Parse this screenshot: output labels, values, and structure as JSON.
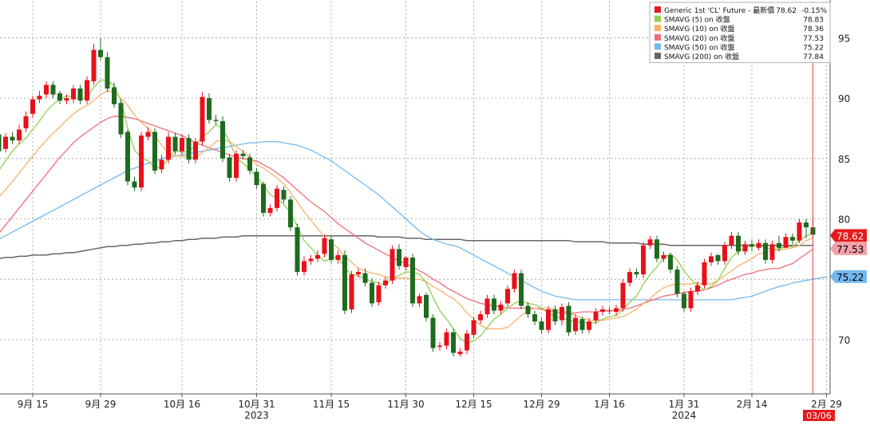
{
  "chart_data": {
    "type": "candlestick",
    "ylim": [
      65.5,
      98
    ],
    "y_ticks": [
      70,
      75,
      80,
      85,
      90,
      95
    ],
    "x_ticks": [
      {
        "label": "9月 15",
        "idx": 5
      },
      {
        "label": "9月 29",
        "idx": 15
      },
      {
        "label": "10月 16",
        "idx": 27
      },
      {
        "label": "10月 31",
        "idx": 38
      },
      {
        "label": "11月 15",
        "idx": 49
      },
      {
        "label": "11月 30",
        "idx": 60
      },
      {
        "label": "12月 15",
        "idx": 70
      },
      {
        "label": "12月 29",
        "idx": 80
      },
      {
        "label": "1月 16",
        "idx": 90
      },
      {
        "label": "1月 31",
        "idx": 101
      },
      {
        "label": "2月 14",
        "idx": 111
      },
      {
        "label": "2月 29",
        "idx": 122
      }
    ],
    "year_labels": [
      {
        "label": "2023",
        "idx": 38
      },
      {
        "label": "2024",
        "idx": 101
      }
    ],
    "last_date_label": "03/06",
    "legend": [
      {
        "name": "Generic 1st 'CL' Future - 最新價",
        "value": "78.62",
        "extra": "-0.15%",
        "color": "#e41a1c"
      },
      {
        "name": "SMAVG (5)  on 收盤",
        "value": "78.83",
        "color": "#8fd14f"
      },
      {
        "name": "SMAVG (10)  on 收盤",
        "value": "78.36",
        "color": "#f7b267"
      },
      {
        "name": "SMAVG (20)  on 收盤",
        "value": "77.53",
        "color": "#f06c7a"
      },
      {
        "name": "SMAVG (50)  on 收盤",
        "value": "75.22",
        "color": "#74b9ef"
      },
      {
        "name": "SMAVG (200)  on 收盤",
        "value": "77.84",
        "color": "#666666"
      }
    ],
    "price_tags": [
      {
        "value": 78.62,
        "text": "78.62",
        "bg": "#e41a1c",
        "fg": "#ffffff"
      },
      {
        "value": 77.53,
        "text": "77.53",
        "bg": "#f2a0a8",
        "fg": "#000000"
      },
      {
        "value": 75.22,
        "text": "75.22",
        "bg": "#74b9ef",
        "fg": "#000000"
      }
    ],
    "close": [
      85.6,
      86.8,
      86.5,
      87.4,
      88.5,
      89.9,
      90.2,
      91.1,
      90.3,
      89.8,
      90.0,
      90.8,
      89.8,
      91.5,
      94.0,
      93.4,
      90.8,
      89.5,
      87.0,
      83.1,
      82.6,
      86.9,
      87.2,
      84.0,
      84.9,
      86.8,
      85.6,
      86.7,
      84.9,
      86.4,
      90.1,
      88.2,
      88.1,
      85.0,
      83.4,
      85.4,
      85.2,
      84.0,
      82.8,
      80.5,
      80.9,
      82.5,
      81.6,
      79.3,
      75.6,
      76.5,
      76.7,
      77.0,
      78.4,
      76.6,
      77.0,
      72.4,
      75.4,
      75.6,
      74.7,
      73.0,
      74.5,
      74.9,
      77.5,
      76.1,
      76.8,
      73.0,
      73.6,
      71.8,
      69.3,
      69.5,
      70.6,
      68.9,
      69.0,
      70.5,
      71.6,
      72.1,
      73.4,
      72.4,
      72.9,
      74.2,
      75.5,
      72.8,
      72.1,
      71.5,
      70.8,
      72.5,
      71.5,
      72.7,
      70.6,
      71.8,
      70.8,
      71.5,
      72.3,
      72.5,
      72.4,
      72.6,
      74.7,
      75.6,
      75.4,
      77.8,
      78.3,
      76.7,
      77.0,
      75.8,
      73.8,
      72.6,
      74.0,
      74.5,
      76.4,
      76.9,
      76.5,
      77.8,
      78.6,
      77.3,
      77.9,
      77.7,
      78.0,
      76.6,
      77.9,
      77.6,
      78.5,
      78.2,
      79.7,
      79.3,
      78.7
    ],
    "open": [
      87.0,
      85.8,
      86.8,
      86.5,
      87.5,
      88.7,
      89.9,
      90.3,
      91.1,
      90.4,
      89.8,
      89.9,
      90.8,
      89.8,
      91.4,
      94.0,
      93.4,
      90.9,
      89.6,
      87.2,
      83.1,
      82.6,
      86.8,
      87.2,
      84.1,
      84.9,
      86.8,
      85.6,
      86.7,
      84.9,
      86.4,
      90.0,
      88.2,
      88.1,
      85.1,
      83.4,
      85.4,
      85.1,
      83.9,
      82.9,
      80.5,
      80.9,
      82.4,
      81.6,
      79.3,
      75.6,
      76.5,
      76.7,
      77.1,
      78.3,
      76.6,
      77.0,
      72.5,
      75.4,
      75.5,
      74.7,
      73.1,
      74.5,
      74.9,
      77.5,
      76.0,
      76.8,
      73.0,
      73.7,
      71.8,
      69.4,
      69.5,
      70.6,
      68.8,
      69.1,
      70.4,
      71.6,
      72.1,
      73.4,
      72.4,
      73.0,
      74.2,
      75.5,
      72.8,
      72.1,
      71.5,
      70.8,
      72.5,
      71.6,
      72.8,
      70.7,
      71.7,
      70.8,
      71.6,
      72.3,
      72.4,
      72.3,
      72.6,
      74.7,
      75.6,
      75.4,
      77.8,
      78.3,
      76.7,
      77.0,
      75.8,
      73.8,
      72.6,
      74.0,
      74.5,
      76.4,
      77.0,
      76.5,
      77.8,
      78.6,
      77.3,
      77.9,
      77.6,
      78.0,
      76.6,
      78.0,
      77.6,
      78.5,
      78.2,
      79.7,
      79.3
    ],
    "high": [
      87.5,
      87.1,
      87.2,
      87.8,
      88.9,
      90.2,
      90.6,
      91.4,
      91.4,
      90.6,
      90.3,
      91.1,
      91.1,
      91.8,
      94.5,
      95.0,
      93.8,
      91.3,
      89.9,
      87.4,
      83.5,
      87.2,
      87.6,
      87.5,
      85.3,
      87.2,
      87.1,
      87.0,
      87.0,
      86.7,
      90.5,
      90.4,
      88.6,
      88.5,
      85.4,
      85.7,
      85.7,
      85.4,
      84.2,
      83.1,
      81.2,
      82.8,
      82.7,
      81.9,
      79.6,
      76.9,
      77.0,
      77.4,
      78.7,
      78.6,
      77.4,
      77.4,
      75.7,
      75.9,
      75.9,
      75.1,
      74.8,
      75.2,
      77.8,
      77.9,
      76.9,
      77.1,
      73.8,
      73.9,
      72.1,
      69.8,
      70.9,
      70.9,
      69.3,
      70.8,
      71.9,
      72.4,
      73.7,
      73.7,
      73.2,
      74.5,
      75.8,
      75.8,
      73.1,
      72.4,
      71.8,
      72.8,
      72.8,
      73.0,
      73.1,
      72.1,
      71.9,
      71.8,
      72.6,
      72.8,
      72.7,
      72.9,
      75.0,
      75.9,
      75.9,
      78.1,
      78.6,
      78.6,
      77.3,
      77.2,
      76.1,
      74.0,
      74.3,
      74.8,
      76.7,
      77.2,
      77.1,
      78.1,
      78.9,
      78.9,
      78.2,
      78.3,
      78.3,
      78.3,
      78.2,
      78.6,
      78.8,
      78.8,
      80.0,
      80.0,
      80.2
    ],
    "low": [
      85.3,
      85.5,
      86.2,
      86.2,
      87.2,
      88.4,
      89.6,
      90.0,
      90.0,
      89.5,
      89.5,
      89.6,
      89.5,
      89.5,
      91.1,
      93.1,
      90.5,
      89.2,
      86.7,
      82.8,
      82.3,
      82.3,
      86.5,
      83.7,
      83.8,
      84.6,
      85.3,
      85.3,
      84.6,
      84.6,
      86.1,
      87.9,
      87.8,
      84.7,
      83.1,
      83.1,
      84.9,
      83.7,
      82.5,
      80.2,
      80.2,
      80.6,
      81.3,
      79.0,
      75.3,
      75.3,
      76.2,
      76.4,
      76.8,
      76.3,
      76.3,
      72.1,
      72.2,
      75.1,
      74.4,
      72.7,
      72.8,
      74.2,
      74.6,
      75.8,
      75.7,
      72.7,
      72.7,
      71.5,
      69.0,
      69.1,
      69.2,
      68.6,
      68.6,
      68.8,
      70.1,
      71.3,
      71.8,
      72.1,
      72.1,
      72.7,
      73.9,
      72.5,
      71.8,
      71.2,
      70.5,
      70.5,
      71.2,
      71.2,
      70.3,
      70.4,
      70.5,
      70.5,
      71.3,
      72.0,
      72.1,
      72.0,
      72.3,
      74.4,
      75.1,
      75.1,
      77.5,
      76.4,
      76.4,
      75.5,
      73.5,
      72.3,
      72.3,
      73.7,
      74.2,
      76.1,
      76.2,
      76.2,
      77.5,
      77.0,
      77.0,
      77.3,
      77.4,
      76.3,
      76.3,
      77.3,
      77.6,
      77.9,
      78.0,
      78.4,
      78.4
    ],
    "sma5": [
      84.0,
      84.8,
      85.6,
      86.2,
      86.7,
      87.4,
      88.1,
      88.9,
      89.5,
      89.9,
      90.2,
      90.1,
      89.9,
      90.1,
      90.9,
      91.5,
      91.5,
      91.0,
      89.8,
      87.5,
      85.7,
      85.1,
      84.8,
      84.2,
      84.3,
      85.0,
      85.7,
      85.5,
      85.6,
      86.1,
      86.8,
      87.2,
      87.8,
      87.5,
      86.4,
      85.1,
      84.6,
      84.1,
      83.5,
      82.8,
      82.0,
      81.7,
      81.2,
      80.5,
      79.4,
      78.2,
      77.6,
      77.0,
      76.5,
      76.7,
      76.9,
      75.9,
      75.4,
      75.3,
      75.0,
      74.8,
      74.7,
      74.5,
      75.1,
      75.3,
      75.6,
      75.6,
      75.4,
      74.7,
      73.5,
      72.4,
      71.7,
      70.9,
      70.1,
      69.7,
      69.9,
      70.3,
      71.0,
      71.7,
      72.1,
      72.6,
      73.0,
      73.2,
      73.0,
      72.9,
      72.6,
      72.2,
      71.9,
      71.8,
      71.6,
      71.5,
      71.4,
      71.4,
      71.4,
      71.7,
      71.9,
      72.0,
      72.5,
      73.1,
      73.6,
      74.6,
      75.4,
      76.0,
      76.8,
      77.1,
      76.6,
      75.7,
      75.0,
      74.5,
      74.1,
      74.4,
      74.9,
      75.9,
      76.8,
      77.3,
      77.6,
      77.8,
      77.8,
      77.6,
      77.5,
      77.5,
      77.7,
      77.7,
      78.2,
      78.6,
      78.8
    ],
    "sma10": [
      81.8,
      82.4,
      83.1,
      83.8,
      84.5,
      85.2,
      85.9,
      86.5,
      87.1,
      87.6,
      88.2,
      88.7,
      89.1,
      89.4,
      89.8,
      90.3,
      90.6,
      90.5,
      90.0,
      89.4,
      88.6,
      88.0,
      87.5,
      86.9,
      86.1,
      85.4,
      85.2,
      85.2,
      85.1,
      85.1,
      85.5,
      85.9,
      86.4,
      86.6,
      86.4,
      86.0,
      85.6,
      85.1,
      84.5,
      84.2,
      83.8,
      83.4,
      82.9,
      82.2,
      81.4,
      80.6,
      79.9,
      79.2,
      78.5,
      78.0,
      77.6,
      76.9,
      76.4,
      75.9,
      75.7,
      75.5,
      75.4,
      75.2,
      75.1,
      75.1,
      75.1,
      75.0,
      75.0,
      74.8,
      74.4,
      74.1,
      73.7,
      73.4,
      72.9,
      72.2,
      71.7,
      71.2,
      70.9,
      70.9,
      70.9,
      71.0,
      71.5,
      72.0,
      72.4,
      72.6,
      72.6,
      72.6,
      72.5,
      72.4,
      72.2,
      72.0,
      71.8,
      71.6,
      71.6,
      71.6,
      71.7,
      71.8,
      71.9,
      72.2,
      72.5,
      73.0,
      73.4,
      73.9,
      74.3,
      74.5,
      74.6,
      74.6,
      74.6,
      74.7,
      74.6,
      74.6,
      74.9,
      75.3,
      75.7,
      76.1,
      76.4,
      76.7,
      77.1,
      77.2,
      77.4,
      77.4,
      77.5,
      77.6,
      77.8,
      78.2,
      78.4
    ],
    "sma20": [
      78.8,
      79.5,
      80.2,
      80.9,
      81.6,
      82.3,
      83.0,
      83.7,
      84.4,
      85.1,
      85.7,
      86.3,
      86.8,
      87.2,
      87.6,
      88.0,
      88.3,
      88.5,
      88.5,
      88.4,
      88.3,
      88.1,
      87.9,
      87.7,
      87.5,
      87.3,
      87.1,
      86.9,
      86.6,
      86.3,
      86.1,
      85.9,
      85.7,
      85.5,
      85.3,
      85.1,
      85.0,
      84.9,
      84.8,
      84.5,
      84.2,
      83.8,
      83.4,
      82.9,
      82.4,
      81.9,
      81.4,
      81.0,
      80.6,
      80.1,
      79.6,
      79.2,
      78.8,
      78.4,
      78.0,
      77.7,
      77.4,
      77.1,
      76.8,
      76.5,
      76.3,
      76.0,
      75.7,
      75.4,
      75.0,
      74.7,
      74.3,
      74.0,
      73.7,
      73.4,
      73.2,
      73.0,
      72.9,
      72.8,
      72.7,
      72.6,
      72.6,
      72.6,
      72.6,
      72.6,
      72.5,
      72.4,
      72.3,
      72.2,
      72.2,
      72.2,
      72.3,
      72.3,
      72.3,
      72.4,
      72.4,
      72.4,
      72.5,
      72.6,
      72.8,
      73.0,
      73.2,
      73.4,
      73.6,
      73.7,
      73.8,
      73.9,
      74.0,
      74.0,
      74.1,
      74.3,
      74.5,
      74.8,
      75.0,
      75.2,
      75.4,
      75.5,
      75.7,
      75.8,
      75.9,
      75.9,
      76.1,
      76.3,
      76.7,
      77.1,
      77.5
    ],
    "sma50": [
      78.3,
      78.6,
      78.9,
      79.2,
      79.5,
      79.8,
      80.1,
      80.4,
      80.7,
      81.0,
      81.3,
      81.6,
      81.9,
      82.2,
      82.5,
      82.8,
      83.1,
      83.4,
      83.7,
      84.0,
      84.2,
      84.4,
      84.6,
      84.8,
      85.0,
      85.1,
      85.2,
      85.3,
      85.4,
      85.5,
      85.6,
      85.7,
      85.8,
      85.9,
      86.0,
      86.1,
      86.2,
      86.3,
      86.3,
      86.4,
      86.4,
      86.4,
      86.3,
      86.2,
      86.1,
      85.9,
      85.7,
      85.4,
      85.1,
      84.8,
      84.4,
      84.0,
      83.6,
      83.2,
      82.8,
      82.4,
      82.0,
      81.5,
      81.0,
      80.5,
      80.0,
      79.5,
      79.0,
      78.6,
      78.3,
      78.1,
      77.9,
      77.8,
      77.6,
      77.3,
      77.0,
      76.7,
      76.4,
      76.1,
      75.8,
      75.5,
      75.2,
      74.9,
      74.6,
      74.3,
      74.0,
      73.8,
      73.6,
      73.5,
      73.4,
      73.3,
      73.3,
      73.3,
      73.3,
      73.3,
      73.3,
      73.3,
      73.3,
      73.3,
      73.3,
      73.3,
      73.3,
      73.3,
      73.3,
      73.3,
      73.3,
      73.3,
      73.3,
      73.3,
      73.3,
      73.3,
      73.3,
      73.3,
      73.3,
      73.4,
      73.5,
      73.6,
      73.8,
      74.0,
      74.2,
      74.4,
      74.5,
      74.7,
      74.8,
      74.9,
      75.0,
      75.1,
      75.2
    ],
    "sma200": [
      76.7,
      76.8,
      76.8,
      76.9,
      76.9,
      77.0,
      77.0,
      77.0,
      77.1,
      77.1,
      77.2,
      77.2,
      77.3,
      77.4,
      77.5,
      77.6,
      77.7,
      77.7,
      77.8,
      77.8,
      77.9,
      77.9,
      78.0,
      78.0,
      78.1,
      78.1,
      78.2,
      78.2,
      78.3,
      78.3,
      78.4,
      78.4,
      78.4,
      78.5,
      78.5,
      78.5,
      78.6,
      78.6,
      78.6,
      78.6,
      78.6,
      78.6,
      78.6,
      78.6,
      78.6,
      78.6,
      78.6,
      78.6,
      78.6,
      78.6,
      78.6,
      78.6,
      78.6,
      78.6,
      78.6,
      78.6,
      78.5,
      78.5,
      78.5,
      78.5,
      78.4,
      78.4,
      78.4,
      78.3,
      78.3,
      78.3,
      78.3,
      78.3,
      78.3,
      78.2,
      78.2,
      78.2,
      78.2,
      78.2,
      78.2,
      78.2,
      78.2,
      78.2,
      78.2,
      78.2,
      78.2,
      78.2,
      78.2,
      78.2,
      78.2,
      78.1,
      78.1,
      78.1,
      78.1,
      78.1,
      78.0,
      78.0,
      78.0,
      78.0,
      78.0,
      77.9,
      77.9,
      77.9,
      77.9,
      77.8,
      77.8,
      77.8,
      77.8,
      77.8,
      77.8,
      77.8,
      77.8,
      77.8,
      77.8,
      77.8,
      77.8,
      77.8,
      77.8,
      77.8,
      77.8,
      77.8,
      77.8,
      77.8,
      77.8,
      77.8,
      77.8
    ]
  }
}
